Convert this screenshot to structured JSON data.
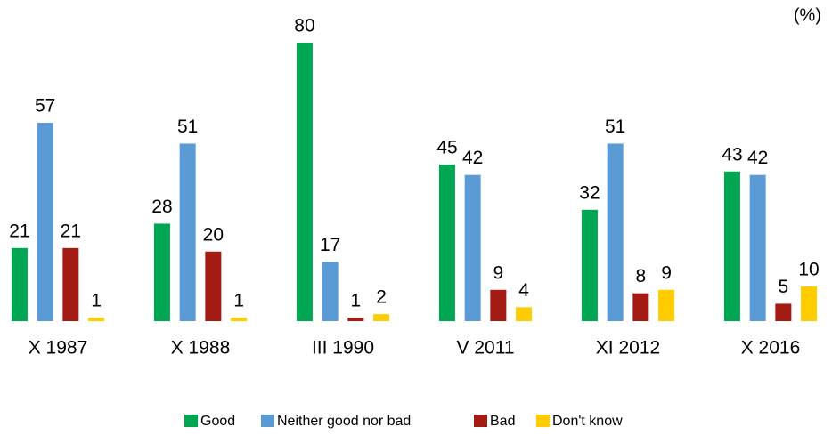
{
  "chart_data": {
    "type": "bar",
    "unit_label": "(%)",
    "categories": [
      "X 1987",
      "X 1988",
      "III 1990",
      "V 2011",
      "XI 2012",
      "X 2016"
    ],
    "series": [
      {
        "name": "Good",
        "color": "#00a651",
        "values": [
          21,
          28,
          80,
          45,
          32,
          43
        ]
      },
      {
        "name": "Neither good nor bad",
        "color": "#5b9bd5",
        "values": [
          57,
          51,
          17,
          42,
          51,
          42
        ]
      },
      {
        "name": "Bad",
        "color": "#a31b12",
        "values": [
          21,
          20,
          1,
          9,
          8,
          5
        ]
      },
      {
        "name": "Don't know",
        "color": "#ffcc00",
        "values": [
          1,
          1,
          2,
          4,
          9,
          10
        ]
      }
    ],
    "ylim": [
      0,
      80
    ],
    "legend": "bottom"
  }
}
